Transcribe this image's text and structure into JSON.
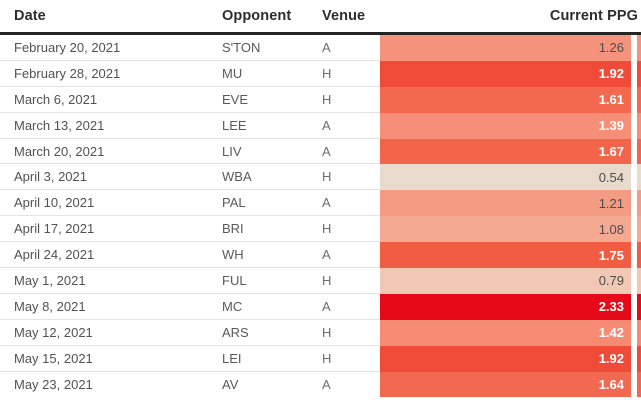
{
  "colors": {
    "header_text": "#2d2d2d",
    "header_border": "#242424",
    "row_divider": "#e5e3e1",
    "body_text": "#565656",
    "value_text_dark": "#4d4d4d",
    "value_text_light": "#ffffff",
    "heat_min": "#e8dacd",
    "heat_max": "#e60a18"
  },
  "chart_data": {
    "type": "table",
    "title": "",
    "columns": [
      "Date",
      "Opponent",
      "Venue",
      "Current PPG"
    ],
    "heatmap_column": "Current PPG",
    "heatmap_range": [
      0.54,
      2.33
    ],
    "rows": [
      {
        "date": "February 20, 2021",
        "opponent": "S'TON",
        "venue": "A",
        "ppg": "1.26",
        "ppg_value": 1.26,
        "cell_color": "#f5937d",
        "value_text": "dark"
      },
      {
        "date": "February 28, 2021",
        "opponent": "MU",
        "venue": "H",
        "ppg": "1.92",
        "ppg_value": 1.92,
        "cell_color": "#f04b38",
        "value_text": "light"
      },
      {
        "date": "March 6, 2021",
        "opponent": "EVE",
        "venue": "H",
        "ppg": "1.61",
        "ppg_value": 1.61,
        "cell_color": "#f2694f",
        "value_text": "light"
      },
      {
        "date": "March 13, 2021",
        "opponent": "LEE",
        "venue": "A",
        "ppg": "1.39",
        "ppg_value": 1.39,
        "cell_color": "#f68e78",
        "value_text": "light"
      },
      {
        "date": "March 20, 2021",
        "opponent": "LIV",
        "venue": "A",
        "ppg": "1.67",
        "ppg_value": 1.67,
        "cell_color": "#f2654b",
        "value_text": "light"
      },
      {
        "date": "April 3, 2021",
        "opponent": "WBA",
        "venue": "H",
        "ppg": "0.54",
        "ppg_value": 0.54,
        "cell_color": "#e8dacd",
        "value_text": "dark"
      },
      {
        "date": "April 10, 2021",
        "opponent": "PAL",
        "venue": "A",
        "ppg": "1.21",
        "ppg_value": 1.21,
        "cell_color": "#f49b84",
        "value_text": "dark"
      },
      {
        "date": "April 17, 2021",
        "opponent": "BRI",
        "venue": "H",
        "ppg": "1.08",
        "ppg_value": 1.08,
        "cell_color": "#f4a993",
        "value_text": "dark"
      },
      {
        "date": "April 24, 2021",
        "opponent": "WH",
        "venue": "A",
        "ppg": "1.75",
        "ppg_value": 1.75,
        "cell_color": "#f15d43",
        "value_text": "light"
      },
      {
        "date": "May 1, 2021",
        "opponent": "FUL",
        "venue": "H",
        "ppg": "0.79",
        "ppg_value": 0.79,
        "cell_color": "#f0c8b3",
        "value_text": "dark"
      },
      {
        "date": "May 8, 2021",
        "opponent": "MC",
        "venue": "A",
        "ppg": "2.33",
        "ppg_value": 2.33,
        "cell_color": "#e60a18",
        "value_text": "light"
      },
      {
        "date": "May 12, 2021",
        "opponent": "ARS",
        "venue": "H",
        "ppg": "1.42",
        "ppg_value": 1.42,
        "cell_color": "#f68b73",
        "value_text": "light"
      },
      {
        "date": "May 15, 2021",
        "opponent": "LEI",
        "venue": "H",
        "ppg": "1.92",
        "ppg_value": 1.92,
        "cell_color": "#f04b38",
        "value_text": "light"
      },
      {
        "date": "May 23, 2021",
        "opponent": "AV",
        "venue": "A",
        "ppg": "1.64",
        "ppg_value": 1.64,
        "cell_color": "#f26850",
        "value_text": "light"
      }
    ]
  }
}
